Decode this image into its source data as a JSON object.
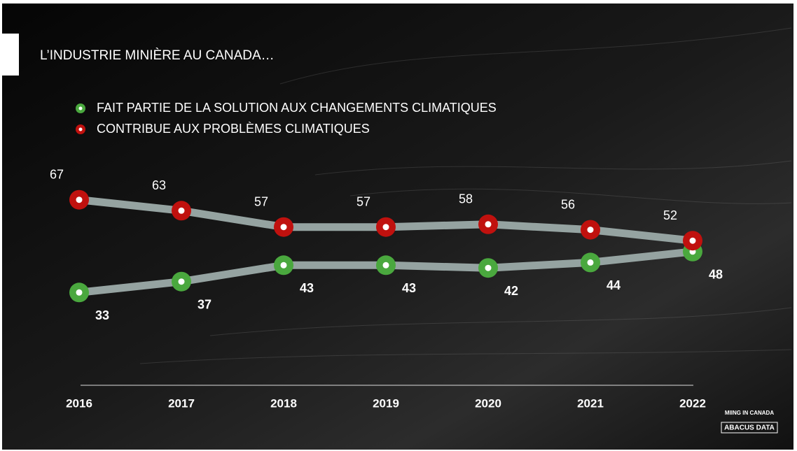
{
  "chart_data": {
    "type": "line",
    "title": "L’INDUSTRIE MINIÈRE AU CANADA…",
    "categories": [
      "2016",
      "2017",
      "2018",
      "2019",
      "2020",
      "2021",
      "2022"
    ],
    "series": [
      {
        "name": "FAIT PARTIE DE LA SOLUTION AUX CHANGEMENTS CLIMATIQUES",
        "color": "#4aa83e",
        "values": [
          33,
          37,
          43,
          43,
          42,
          44,
          48
        ]
      },
      {
        "name": "CONTRIBUE AUX PROBLÈMES CLIMATIQUES",
        "color": "#c0110e",
        "values": [
          67,
          63,
          57,
          57,
          58,
          56,
          52
        ]
      }
    ]
  },
  "footer": {
    "note": "MIING IN CANADA",
    "logo": "ABACUS DATA"
  }
}
